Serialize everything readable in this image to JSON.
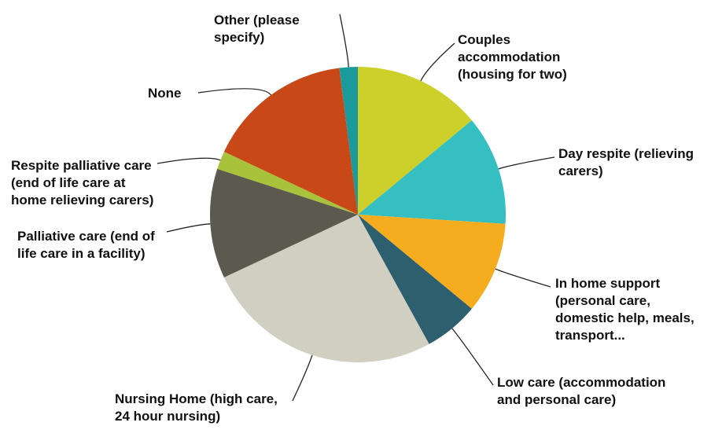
{
  "chart_data": {
    "type": "pie",
    "categories": [
      "Couples accommodation (housing for two)",
      "Day respite (relieving carers)",
      "In home support (personal care, domestic help, meals, transport...",
      "Low care (accommodation and personal care)",
      "Nursing Home (high care, 24 hour nursing)",
      "Palliative care (end of life care in a facility)",
      "Respite palliative care (end of life care at home relieving carers)",
      "None",
      "Other (please specify)"
    ],
    "values": [
      14,
      12,
      10,
      6,
      26,
      12,
      2,
      16,
      2
    ],
    "colors": [
      "#cdd02a",
      "#35bfc1",
      "#f5ac1f",
      "#2d5f6e",
      "#d0cfc2",
      "#5c5a4e",
      "#a8c23b",
      "#c84818",
      "#1a9a9a"
    ]
  }
}
